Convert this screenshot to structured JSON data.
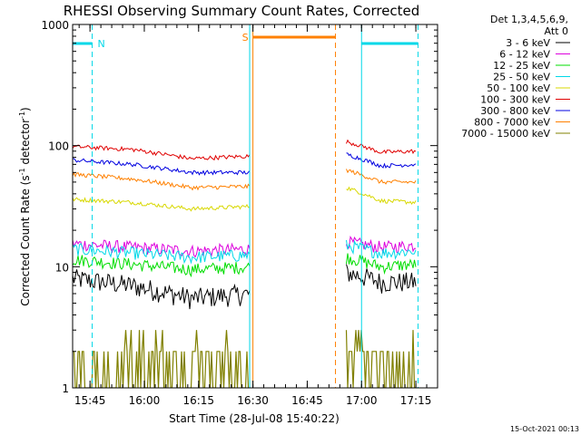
{
  "chart_data": {
    "type": "line",
    "title": "RHESSI Observing Summary Count Rates, Corrected",
    "xlabel": "Start Time (28-Jul-08 15:40:22)",
    "ylabel": "Corrected Count Rate (s⁻¹ detector⁻¹)",
    "ylabel_main": "Corrected Count Rate (s",
    "ylabel_sup1": "-1",
    "ylabel_mid": " detector",
    "ylabel_sup2": "-1",
    "ylabel_end": ")",
    "y_scale": "log",
    "ylim": [
      1,
      1000
    ],
    "xlim_minutes": [
      15.67,
      17.35
    ],
    "x_ticks": [
      {
        "label": "15:45",
        "value": 15.75
      },
      {
        "label": "16:00",
        "value": 16.0
      },
      {
        "label": "16:15",
        "value": 16.25
      },
      {
        "label": "16:30",
        "value": 16.5
      },
      {
        "label": "16:45",
        "value": 16.75
      },
      {
        "label": "17:00",
        "value": 17.0
      },
      {
        "label": "17:15",
        "value": 17.25
      }
    ],
    "y_ticks": [
      {
        "label": "1",
        "value": 1
      },
      {
        "label": "10",
        "value": 10
      },
      {
        "label": "100",
        "value": 100
      },
      {
        "label": "1000",
        "value": 1000
      }
    ],
    "legend_header": [
      "Det 1,3,4,5,6,9,",
      "Att 0"
    ],
    "legend_placement": "right",
    "series": [
      {
        "name": "3 - 6 keV",
        "color": "#000000",
        "seg1": [
          8.0,
          7.0,
          5.5,
          6.0
        ],
        "seg2": [
          9.0,
          7.5,
          7.5
        ]
      },
      {
        "name": "6 - 12 keV",
        "color": "#dd00dd",
        "seg1": [
          15.5,
          14.5,
          13.5,
          14.0
        ],
        "seg2": [
          16.0,
          14.5,
          15.0
        ]
      },
      {
        "name": "12 - 25 keV",
        "color": "#00dd00",
        "seg1": [
          11.5,
          10.5,
          9.5,
          10.0
        ],
        "seg2": [
          12.0,
          10.0,
          10.5
        ]
      },
      {
        "name": "25 - 50 keV",
        "color": "#00d8e8",
        "seg1": [
          14.0,
          13.0,
          12.0,
          12.5
        ],
        "seg2": [
          15.0,
          13.0,
          13.5
        ]
      },
      {
        "name": "50 - 100 keV",
        "color": "#d8d800",
        "seg1": [
          36.0,
          34.0,
          30.0,
          31.5
        ],
        "seg2": [
          45.0,
          35.0,
          34.0
        ]
      },
      {
        "name": "100 - 300 keV",
        "color": "#e00000",
        "seg1": [
          98.0,
          93.0,
          78.0,
          82.0
        ],
        "seg2": [
          108.0,
          88.0,
          90.0
        ]
      },
      {
        "name": "300 - 800 keV",
        "color": "#0000e0",
        "seg1": [
          76.0,
          70.0,
          60.0,
          60.0
        ],
        "seg2": [
          85.0,
          68.0,
          70.0
        ]
      },
      {
        "name": "800 - 7000 keV",
        "color": "#ff8000",
        "seg1": [
          58.0,
          53.0,
          45.0,
          46.0
        ],
        "seg2": [
          63.0,
          50.0,
          50.0
        ]
      },
      {
        "name": "7000 - 15000 keV",
        "color": "#808000",
        "seg1": [
          1.6,
          1.5,
          1.5,
          1.5
        ],
        "seg2": [
          1.7,
          1.6,
          1.6
        ]
      }
    ],
    "segment1_range": [
      15.67,
      16.49
    ],
    "segment2_range": [
      16.93,
      17.25
    ],
    "annotations": [
      {
        "label": "N",
        "color": "#00d8e8",
        "start": 15.67,
        "end": 15.76
      },
      {
        "label": "",
        "color": "#00d8e8",
        "start": 17.0,
        "end": 17.26
      },
      {
        "label": "S",
        "color": "#ff8000",
        "start": 16.5,
        "end": 16.88
      }
    ],
    "vlines": [
      {
        "value": 15.67,
        "color": "#00d8e8",
        "style": "solid"
      },
      {
        "value": 15.76,
        "color": "#00d8e8",
        "style": "dashed"
      },
      {
        "value": 16.485,
        "color": "#00d8e8",
        "style": "solid"
      },
      {
        "value": 16.5,
        "color": "#ff8000",
        "style": "solid"
      },
      {
        "value": 16.88,
        "color": "#ff8000",
        "style": "dashed"
      },
      {
        "value": 17.0,
        "color": "#00d8e8",
        "style": "solid"
      },
      {
        "value": 17.26,
        "color": "#00d8e8",
        "style": "dashed"
      }
    ],
    "footer_date": "15-Oct-2021 00:13"
  }
}
